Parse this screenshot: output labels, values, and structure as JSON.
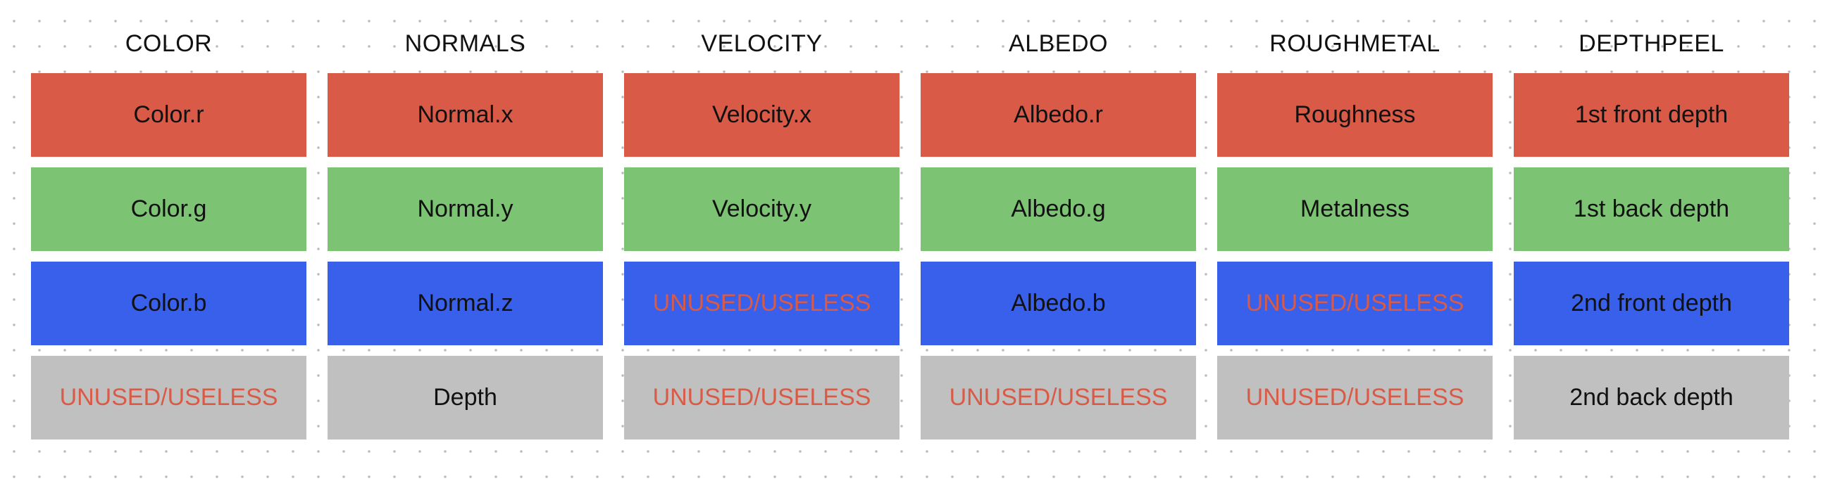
{
  "colors": {
    "r": "#d95a47",
    "g": "#7cc473",
    "b": "#3860ea",
    "a": "#c0c0c0",
    "unused_text": "#d95a45",
    "text": "#111111"
  },
  "columns": [
    {
      "header": "COLOR",
      "channels": [
        {
          "label": "Color.r",
          "unused": false
        },
        {
          "label": "Color.g",
          "unused": false
        },
        {
          "label": "Color.b",
          "unused": false
        },
        {
          "label": "UNUSED/USELESS",
          "unused": true
        }
      ]
    },
    {
      "header": "NORMALS",
      "channels": [
        {
          "label": "Normal.x",
          "unused": false
        },
        {
          "label": "Normal.y",
          "unused": false
        },
        {
          "label": "Normal.z",
          "unused": false
        },
        {
          "label": "Depth",
          "unused": false
        }
      ]
    },
    {
      "header": "VELOCITY",
      "channels": [
        {
          "label": "Velocity.x",
          "unused": false
        },
        {
          "label": "Velocity.y",
          "unused": false
        },
        {
          "label": "UNUSED/USELESS",
          "unused": true
        },
        {
          "label": "UNUSED/USELESS",
          "unused": true
        }
      ]
    },
    {
      "header": "ALBEDO",
      "channels": [
        {
          "label": "Albedo.r",
          "unused": false
        },
        {
          "label": "Albedo.g",
          "unused": false
        },
        {
          "label": "Albedo.b",
          "unused": false
        },
        {
          "label": "UNUSED/USELESS",
          "unused": true
        }
      ]
    },
    {
      "header": "ROUGHMETAL",
      "channels": [
        {
          "label": "Roughness",
          "unused": false
        },
        {
          "label": "Metalness",
          "unused": false
        },
        {
          "label": "UNUSED/USELESS",
          "unused": true
        },
        {
          "label": "UNUSED/USELESS",
          "unused": true
        }
      ]
    },
    {
      "header": "DEPTHPEEL",
      "channels": [
        {
          "label": "1st front depth",
          "unused": false
        },
        {
          "label": "1st back depth",
          "unused": false
        },
        {
          "label": "2nd front depth",
          "unused": false
        },
        {
          "label": "2nd back depth",
          "unused": false
        }
      ]
    }
  ]
}
